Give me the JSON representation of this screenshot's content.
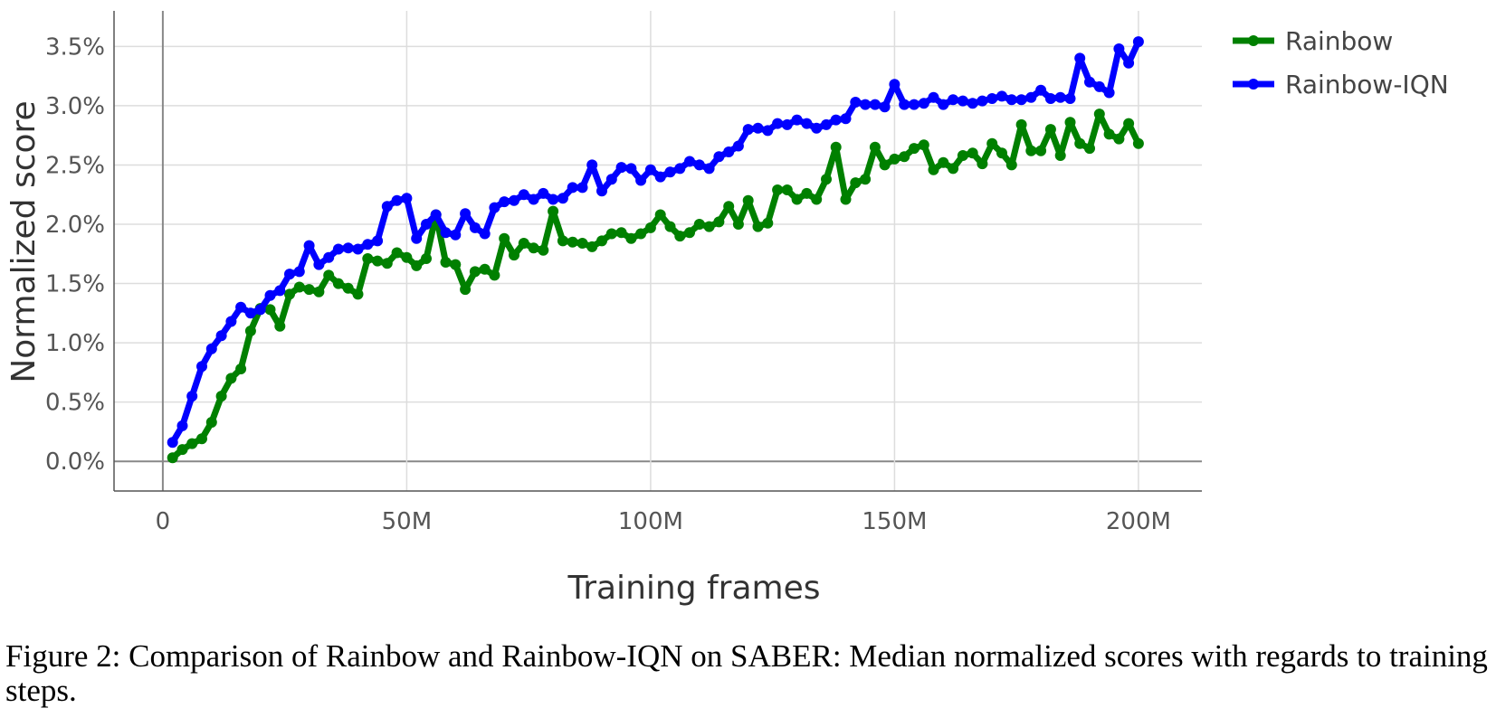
{
  "chart_data": {
    "type": "line",
    "xlabel": "Training frames",
    "ylabel": "Normalized score",
    "xlim": [
      -10,
      213
    ],
    "ylim": [
      -0.25,
      3.8
    ],
    "x_ticks": [
      0,
      50,
      100,
      150,
      200
    ],
    "x_tick_labels": [
      "0",
      "50M",
      "100M",
      "150M",
      "200M"
    ],
    "y_ticks": [
      0,
      0.5,
      1.0,
      1.5,
      2.0,
      2.5,
      3.0,
      3.5
    ],
    "y_tick_labels": [
      "0.0%",
      "0.5%",
      "1.0%",
      "1.5%",
      "2.0%",
      "2.5%",
      "3.0%",
      "3.5%"
    ],
    "grid": true,
    "legend_position": "top-right",
    "series": [
      {
        "name": "Rainbow",
        "color": "#008000",
        "x": [
          2,
          4,
          6,
          8,
          10,
          12,
          14,
          16,
          18,
          20,
          22,
          24,
          26,
          28,
          30,
          32,
          34,
          36,
          38,
          40,
          42,
          44,
          46,
          48,
          50,
          52,
          54,
          56,
          58,
          60,
          62,
          64,
          66,
          68,
          70,
          72,
          74,
          76,
          78,
          80,
          82,
          84,
          86,
          88,
          90,
          92,
          94,
          96,
          98,
          100,
          102,
          104,
          106,
          108,
          110,
          112,
          114,
          116,
          118,
          120,
          122,
          124,
          126,
          128,
          130,
          132,
          134,
          136,
          138,
          140,
          142,
          144,
          146,
          148,
          150,
          152,
          154,
          156,
          158,
          160,
          162,
          164,
          166,
          168,
          170,
          172,
          174,
          176,
          178,
          180,
          182,
          184,
          186,
          188,
          190,
          192,
          194,
          196,
          198,
          200
        ],
        "y": [
          0.03,
          0.1,
          0.15,
          0.19,
          0.33,
          0.55,
          0.7,
          0.78,
          1.1,
          1.29,
          1.28,
          1.14,
          1.41,
          1.47,
          1.45,
          1.43,
          1.57,
          1.5,
          1.46,
          1.41,
          1.71,
          1.69,
          1.67,
          1.76,
          1.72,
          1.65,
          1.71,
          2.08,
          1.68,
          1.66,
          1.45,
          1.6,
          1.62,
          1.57,
          1.88,
          1.74,
          1.84,
          1.8,
          1.78,
          2.11,
          1.86,
          1.85,
          1.84,
          1.81,
          1.86,
          1.92,
          1.93,
          1.88,
          1.92,
          1.97,
          2.08,
          1.98,
          1.9,
          1.93,
          2.0,
          1.98,
          2.02,
          2.15,
          2.0,
          2.2,
          1.98,
          2.01,
          2.29,
          2.29,
          2.21,
          2.26,
          2.21,
          2.38,
          2.65,
          2.21,
          2.35,
          2.38,
          2.65,
          2.5,
          2.55,
          2.57,
          2.64,
          2.67,
          2.46,
          2.52,
          2.47,
          2.58,
          2.6,
          2.51,
          2.68,
          2.6,
          2.5,
          2.84,
          2.62,
          2.62,
          2.8,
          2.58,
          2.86,
          2.68,
          2.64,
          2.93,
          2.76,
          2.72,
          2.85,
          2.68
        ]
      },
      {
        "name": "Rainbow-IQN",
        "color": "#0000FF",
        "x": [
          2,
          4,
          6,
          8,
          10,
          12,
          14,
          16,
          18,
          20,
          22,
          24,
          26,
          28,
          30,
          32,
          34,
          36,
          38,
          40,
          42,
          44,
          46,
          48,
          50,
          52,
          54,
          56,
          58,
          60,
          62,
          64,
          66,
          68,
          70,
          72,
          74,
          76,
          78,
          80,
          82,
          84,
          86,
          88,
          90,
          92,
          94,
          96,
          98,
          100,
          102,
          104,
          106,
          108,
          110,
          112,
          114,
          116,
          118,
          120,
          122,
          124,
          126,
          128,
          130,
          132,
          134,
          136,
          138,
          140,
          142,
          144,
          146,
          148,
          150,
          152,
          154,
          156,
          158,
          160,
          162,
          164,
          166,
          168,
          170,
          172,
          174,
          176,
          178,
          180,
          182,
          184,
          186,
          188,
          190,
          192,
          194,
          196,
          198,
          200
        ],
        "y": [
          0.16,
          0.3,
          0.55,
          0.8,
          0.95,
          1.06,
          1.18,
          1.3,
          1.25,
          1.28,
          1.4,
          1.44,
          1.58,
          1.6,
          1.82,
          1.66,
          1.72,
          1.79,
          1.8,
          1.79,
          1.83,
          1.86,
          2.15,
          2.2,
          2.22,
          1.88,
          2.0,
          2.08,
          1.93,
          1.91,
          2.09,
          1.97,
          1.92,
          2.14,
          2.19,
          2.2,
          2.25,
          2.21,
          2.26,
          2.21,
          2.22,
          2.31,
          2.31,
          2.5,
          2.28,
          2.38,
          2.48,
          2.47,
          2.37,
          2.46,
          2.4,
          2.44,
          2.47,
          2.53,
          2.5,
          2.47,
          2.57,
          2.61,
          2.66,
          2.8,
          2.81,
          2.79,
          2.85,
          2.84,
          2.88,
          2.85,
          2.81,
          2.84,
          2.88,
          2.89,
          3.03,
          3.01,
          3.01,
          2.99,
          3.18,
          3.01,
          3.01,
          3.02,
          3.07,
          3.01,
          3.05,
          3.04,
          3.02,
          3.04,
          3.06,
          3.08,
          3.05,
          3.05,
          3.07,
          3.13,
          3.06,
          3.07,
          3.06,
          3.4,
          3.2,
          3.16,
          3.11,
          3.48,
          3.36,
          3.54
        ]
      }
    ]
  },
  "caption": "Figure 2: Comparison of Rainbow and Rainbow-IQN on SABER: Median normalized scores with regards to training steps."
}
